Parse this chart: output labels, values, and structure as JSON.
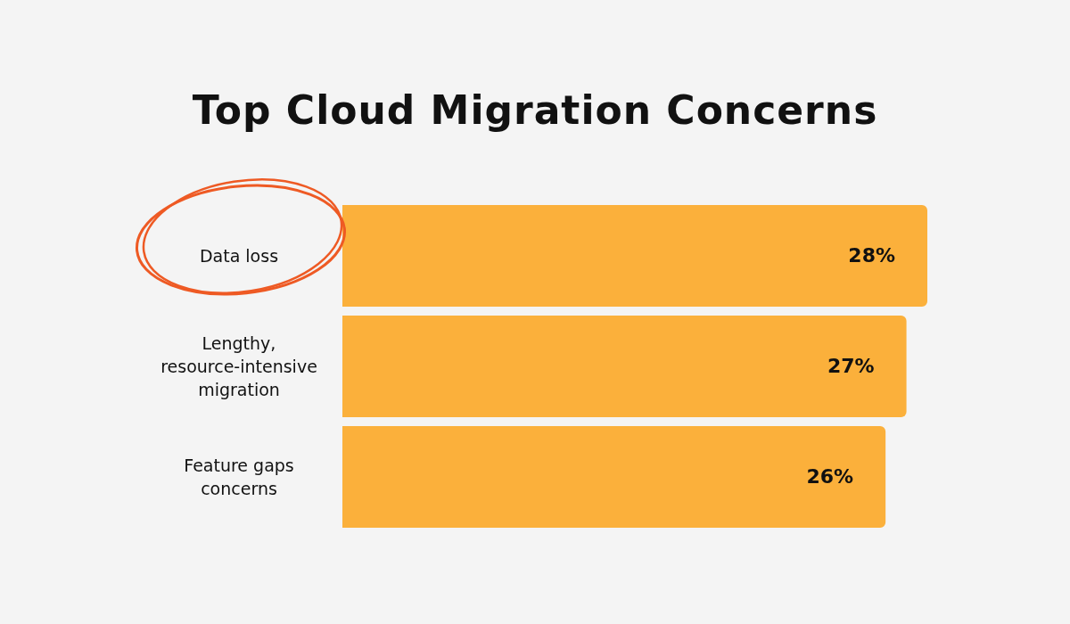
{
  "chart_data": {
    "type": "bar",
    "title": "Top Cloud Migration Concerns",
    "orientation": "horizontal",
    "categories": [
      "Data loss",
      "Lengthy, resource-intensive migration",
      "Feature gaps concerns"
    ],
    "values": [
      28,
      27,
      26
    ],
    "value_labels": [
      "28%",
      "27%",
      "26%"
    ],
    "color": "#fbb03b",
    "tick_labels": false
  }
}
